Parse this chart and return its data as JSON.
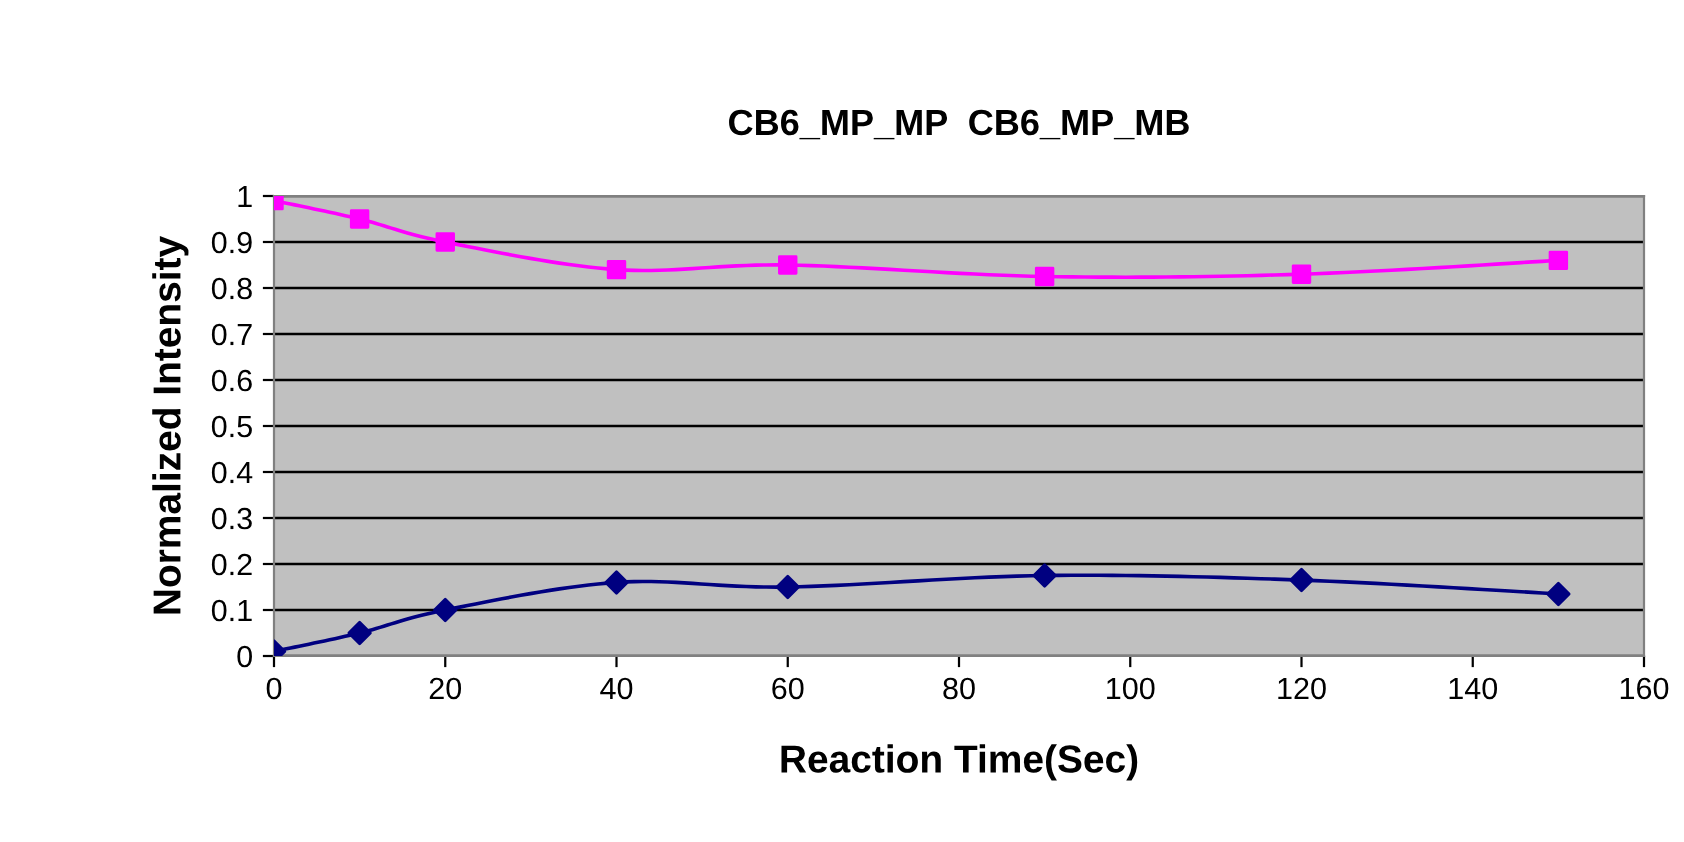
{
  "chart_data": {
    "type": "line",
    "title": "CB6_MP_MP  CB6_MP_MB",
    "xlabel": "Reaction Time(Sec)",
    "ylabel": "Normalized Intensity",
    "x": [
      0,
      10,
      20,
      40,
      60,
      90,
      120,
      150
    ],
    "series": [
      {
        "color": "#000080",
        "marker": "diamond",
        "values": [
          0.01,
          0.05,
          0.1,
          0.16,
          0.15,
          0.175,
          0.165,
          0.135
        ]
      },
      {
        "color": "#ff00ff",
        "marker": "square",
        "values": [
          0.99,
          0.95,
          0.9,
          0.84,
          0.85,
          0.825,
          0.83,
          0.86
        ]
      }
    ],
    "xlim": [
      0,
      160
    ],
    "xticks": [
      0,
      20,
      40,
      60,
      80,
      100,
      120,
      140,
      160
    ],
    "ylim": [
      0,
      1
    ],
    "yticks": [
      0,
      0.1,
      0.2,
      0.3,
      0.4,
      0.5,
      0.6,
      0.7,
      0.8,
      0.9,
      1
    ],
    "grid": "y",
    "line_style": "solid"
  }
}
